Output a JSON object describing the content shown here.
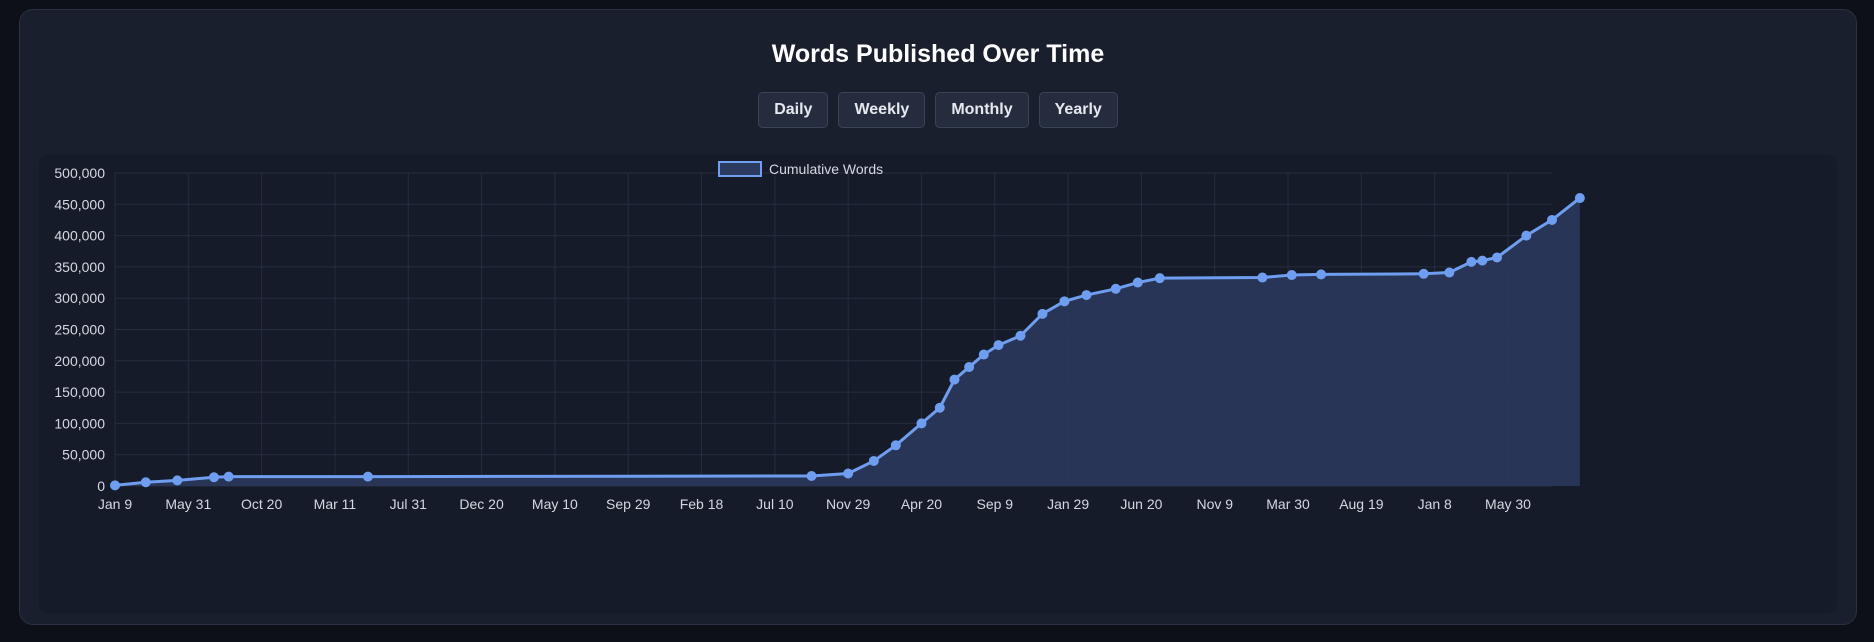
{
  "title": "Words Published Over Time",
  "buttons": [
    {
      "label": "Daily"
    },
    {
      "label": "Weekly"
    },
    {
      "label": "Monthly"
    },
    {
      "label": "Yearly"
    }
  ],
  "colors": {
    "line": "#6f9ef0",
    "fill": "#2b3a5e",
    "grid": "#262d3e"
  },
  "chart_data": {
    "type": "area",
    "title": "Words Published Over Time",
    "series": [
      {
        "name": "Cumulative Words",
        "points": [
          [
            "Jan 9",
            1000
          ],
          [
            "Feb 20",
            6000
          ],
          [
            "Apr 10",
            9000
          ],
          [
            "May 31",
            14000
          ],
          [
            "Jul 1",
            15000
          ],
          [
            "Mar 20",
            15000
          ],
          [
            "Aug 20",
            16000
          ],
          [
            "Sep 10",
            20000
          ],
          [
            "Oct 10",
            40000
          ],
          [
            "Nov 10",
            65000
          ],
          [
            "Dec 20",
            100000
          ],
          [
            "Jan 30",
            125000
          ],
          [
            "Feb 20",
            170000
          ],
          [
            "Mar 20",
            190000
          ],
          [
            "Apr 20",
            210000
          ],
          [
            "May 30",
            225000
          ],
          [
            "Jul 1",
            240000
          ],
          [
            "Aug 10",
            275000
          ],
          [
            "Sep 9",
            295000
          ],
          [
            "Oct 20",
            305000
          ],
          [
            "Dec 10",
            315000
          ],
          [
            "Jan 29",
            325000
          ],
          [
            "Mar 10",
            332000
          ],
          [
            "Dec 20",
            333000
          ],
          [
            "Mar 30",
            337000
          ],
          [
            "May 1",
            338000
          ],
          [
            "Dec 25",
            339000
          ],
          [
            "Jan 20",
            341000
          ],
          [
            "Feb 20",
            358000
          ],
          [
            "Mar 5",
            360000
          ],
          [
            "Mar 25",
            365000
          ],
          [
            "May 30",
            400000
          ],
          [
            "Jul 10",
            425000
          ],
          [
            "Aug 20",
            460000
          ]
        ]
      }
    ],
    "x_tick_labels": [
      "Jan 9",
      "May 31",
      "Oct 20",
      "Mar 11",
      "Jul 31",
      "Dec 20",
      "May 10",
      "Sep 29",
      "Feb 18",
      "Jul 10",
      "Nov 29",
      "Apr 20",
      "Sep 9",
      "Jan 29",
      "Jun 20",
      "Nov 9",
      "Mar 30",
      "Aug 19",
      "Jan 8",
      "May 30"
    ],
    "y_tick_labels": [
      "0",
      "50,000",
      "100,000",
      "150,000",
      "200,000",
      "250,000",
      "300,000",
      "350,000",
      "400,000",
      "450,000",
      "500,000"
    ],
    "ylim": [
      0,
      500000
    ],
    "xlabel": "",
    "ylabel": "",
    "grid": true,
    "legend_position": "top-center"
  }
}
